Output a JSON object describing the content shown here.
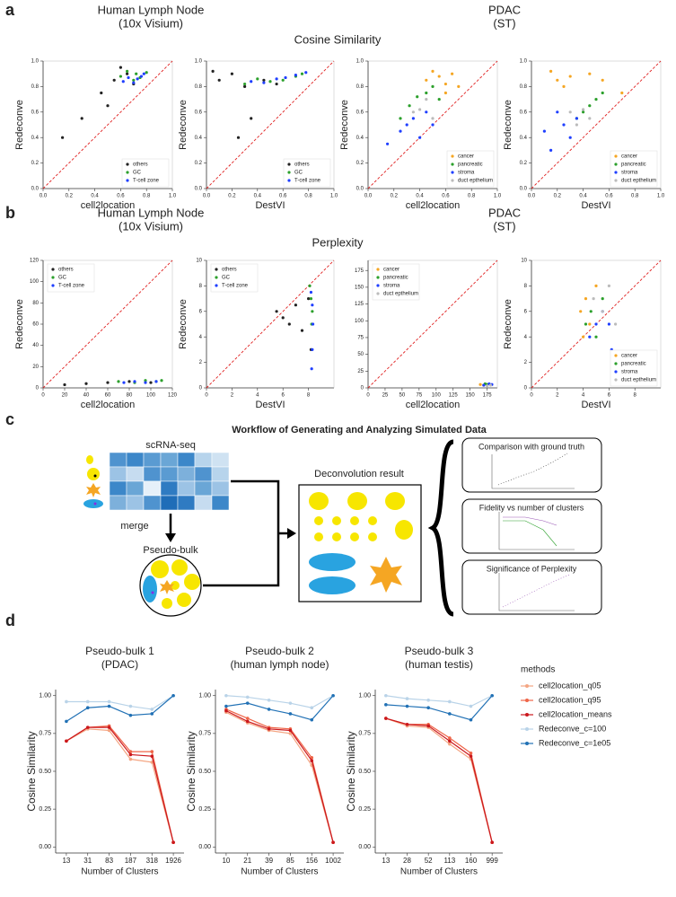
{
  "panel_labels": [
    "a",
    "b",
    "c",
    "d"
  ],
  "panel_a": {
    "headers": [
      {
        "title": "Human Lymph Node",
        "subtitle": "(10x Visium)"
      },
      {
        "title": "PDAC",
        "subtitle": "(ST)"
      }
    ],
    "metric": "Cosine Similarity"
  },
  "panel_b": {
    "headers": [
      {
        "title": "Human Lymph Node",
        "subtitle": "(10x Visium)"
      },
      {
        "title": "PDAC",
        "subtitle": "(ST)"
      }
    ],
    "metric": "Perplexity"
  },
  "diagram": {
    "title": "Workflow of Generating and Analyzing Simulated Data",
    "nodes": [
      {
        "label": "scRNA-seq"
      },
      {
        "label": "merge"
      },
      {
        "label": "Pseudo-bulk"
      },
      {
        "label": "Deconvolution result"
      },
      {
        "label": "Comparison with ground truth"
      },
      {
        "label": "Fidelity vs number of clusters"
      },
      {
        "label": "Significance of Perplexity"
      }
    ]
  },
  "chart_data": [
    {
      "type": "scatter",
      "xlabel": "cell2location",
      "ylabel": "Redeconve",
      "xlim": [
        0,
        1
      ],
      "ylim": [
        0,
        1
      ],
      "xticks": [
        {
          "value": 0,
          "label": "0.0"
        },
        0.2,
        0.4,
        0.6,
        0.8,
        {
          "value": 1,
          "label": "1.0"
        }
      ],
      "yticks": [
        {
          "value": 0,
          "label": "0.0"
        },
        0.2,
        0.4,
        0.6,
        0.8,
        {
          "value": 1,
          "label": "1.0"
        }
      ],
      "legend": "lower right",
      "series": [
        {
          "name": "others",
          "color": "#222222",
          "x": [
            0.15,
            0.3,
            0.45,
            0.55,
            0.6,
            0.65,
            0.7,
            0.5
          ],
          "values": [
            0.4,
            0.55,
            0.75,
            0.85,
            0.95,
            0.9,
            0.82,
            0.65
          ]
        },
        {
          "name": "GC",
          "color": "#2ca02c",
          "x": [
            0.6,
            0.65,
            0.7,
            0.72,
            0.75,
            0.8
          ],
          "values": [
            0.88,
            0.92,
            0.85,
            0.9,
            0.87,
            0.91
          ]
        },
        {
          "name": "T-cell zone",
          "color": "#1f3fff",
          "x": [
            0.62,
            0.66,
            0.7,
            0.73,
            0.76,
            0.78
          ],
          "values": [
            0.84,
            0.87,
            0.83,
            0.86,
            0.88,
            0.9
          ]
        }
      ]
    },
    {
      "type": "scatter",
      "xlabel": "DestVI",
      "ylabel": "Redeconve",
      "xlim": [
        0,
        1
      ],
      "ylim": [
        0,
        1
      ],
      "xticks": [
        {
          "value": 0,
          "label": "0.0"
        },
        0.2,
        0.4,
        0.6,
        0.8,
        {
          "value": 1,
          "label": "1.0"
        }
      ],
      "yticks": [
        {
          "value": 0,
          "label": "0.0"
        },
        0.2,
        0.4,
        0.6,
        0.8,
        {
          "value": 1,
          "label": "1.0"
        }
      ],
      "legend": "lower right",
      "series": [
        {
          "name": "others",
          "color": "#222222",
          "x": [
            0.05,
            0.1,
            0.2,
            0.3,
            0.35,
            0.45,
            0.55,
            0.25
          ],
          "values": [
            0.92,
            0.85,
            0.9,
            0.8,
            0.55,
            0.85,
            0.82,
            0.4
          ]
        },
        {
          "name": "GC",
          "color": "#2ca02c",
          "x": [
            0.3,
            0.4,
            0.5,
            0.6,
            0.7,
            0.75
          ],
          "values": [
            0.82,
            0.86,
            0.84,
            0.85,
            0.88,
            0.9
          ]
        },
        {
          "name": "T-cell zone",
          "color": "#1f3fff",
          "x": [
            0.35,
            0.45,
            0.55,
            0.62,
            0.7,
            0.78
          ],
          "values": [
            0.84,
            0.83,
            0.86,
            0.87,
            0.89,
            0.91
          ]
        }
      ]
    },
    {
      "type": "scatter",
      "xlabel": "cell2location",
      "ylabel": "Redeconve",
      "xlim": [
        0,
        1
      ],
      "ylim": [
        0,
        1
      ],
      "xticks": [
        {
          "value": 0,
          "label": "0.0"
        },
        0.2,
        0.4,
        0.6,
        0.8,
        {
          "value": 1,
          "label": "1.0"
        }
      ],
      "yticks": [
        {
          "value": 0,
          "label": "0.0"
        },
        0.2,
        0.4,
        0.6,
        0.8,
        {
          "value": 1,
          "label": "1.0"
        }
      ],
      "legend": "lower right",
      "series": [
        {
          "name": "cancer",
          "color": "#f5a623",
          "x": [
            0.45,
            0.5,
            0.55,
            0.6,
            0.65,
            0.7,
            0.6
          ],
          "values": [
            0.85,
            0.92,
            0.88,
            0.82,
            0.9,
            0.8,
            0.75
          ]
        },
        {
          "name": "pancreatic",
          "color": "#2ca02c",
          "x": [
            0.25,
            0.32,
            0.38,
            0.45,
            0.5,
            0.55
          ],
          "values": [
            0.55,
            0.65,
            0.72,
            0.75,
            0.8,
            0.7
          ]
        },
        {
          "name": "stroma",
          "color": "#1f3fff",
          "x": [
            0.15,
            0.25,
            0.3,
            0.35,
            0.4,
            0.45,
            0.5
          ],
          "values": [
            0.35,
            0.45,
            0.5,
            0.55,
            0.4,
            0.6,
            0.5
          ]
        },
        {
          "name": "duct epthelium",
          "color": "#bbbbbb",
          "x": [
            0.35,
            0.4,
            0.45,
            0.5
          ],
          "values": [
            0.6,
            0.62,
            0.7,
            0.55
          ]
        }
      ]
    },
    {
      "type": "scatter",
      "xlabel": "DestVI",
      "ylabel": "Redeconve",
      "xlim": [
        0,
        1
      ],
      "ylim": [
        0,
        1
      ],
      "xticks": [
        {
          "value": 0,
          "label": "0.0"
        },
        0.2,
        0.4,
        0.6,
        0.8,
        {
          "value": 1,
          "label": "1.0"
        }
      ],
      "yticks": [
        {
          "value": 0,
          "label": "0.0"
        },
        0.2,
        0.4,
        0.6,
        0.8,
        {
          "value": 1,
          "label": "1.0"
        }
      ],
      "legend": "lower right",
      "series": [
        {
          "name": "cancer",
          "color": "#f5a623",
          "x": [
            0.15,
            0.2,
            0.25,
            0.3,
            0.45,
            0.55,
            0.7
          ],
          "values": [
            0.92,
            0.85,
            0.8,
            0.88,
            0.9,
            0.85,
            0.75
          ]
        },
        {
          "name": "pancreatic",
          "color": "#2ca02c",
          "x": [
            0.35,
            0.4,
            0.45,
            0.5,
            0.55
          ],
          "values": [
            0.55,
            0.6,
            0.65,
            0.7,
            0.75
          ]
        },
        {
          "name": "stroma",
          "color": "#1f3fff",
          "x": [
            0.1,
            0.15,
            0.2,
            0.25,
            0.3,
            0.35
          ],
          "values": [
            0.45,
            0.3,
            0.6,
            0.5,
            0.4,
            0.55
          ]
        },
        {
          "name": "duct epthelium",
          "color": "#bbbbbb",
          "x": [
            0.3,
            0.35,
            0.4,
            0.45
          ],
          "values": [
            0.6,
            0.5,
            0.62,
            0.55
          ]
        }
      ]
    },
    {
      "type": "scatter",
      "xlabel": "cell2location",
      "ylabel": "Redeconve",
      "xlim": [
        0,
        120
      ],
      "ylim": [
        0,
        120
      ],
      "xticks": [
        0,
        20,
        40,
        60,
        80,
        100,
        120
      ],
      "yticks": [
        0,
        20,
        40,
        60,
        80,
        100,
        120
      ],
      "legend": "upper left",
      "series": [
        {
          "name": "others",
          "color": "#222222",
          "x": [
            20,
            40,
            60,
            80,
            100
          ],
          "values": [
            3,
            4,
            5,
            6,
            5
          ]
        },
        {
          "name": "GC",
          "color": "#2ca02c",
          "x": [
            70,
            85,
            95,
            105,
            110
          ],
          "values": [
            6,
            5,
            7,
            6,
            7
          ]
        },
        {
          "name": "T-cell zone",
          "color": "#1f3fff",
          "x": [
            75,
            85,
            95,
            105
          ],
          "values": [
            5,
            6,
            5,
            6
          ]
        }
      ]
    },
    {
      "type": "scatter",
      "xlabel": "DestVI",
      "ylabel": "Redeconve",
      "xlim": [
        0,
        10
      ],
      "ylim": [
        0,
        10
      ],
      "xticks": [
        0,
        2,
        4,
        6,
        8
      ],
      "yticks": [
        0,
        2,
        4,
        6,
        8,
        10
      ],
      "legend": "upper left",
      "series": [
        {
          "name": "others",
          "color": "#222222",
          "x": [
            5.5,
            6,
            6.5,
            7,
            7.5,
            8,
            8.2
          ],
          "values": [
            6,
            5.5,
            5,
            6.5,
            4.5,
            7,
            3
          ]
        },
        {
          "name": "GC",
          "color": "#2ca02c",
          "x": [
            8.1,
            8.2,
            8.3,
            8.25
          ],
          "values": [
            8,
            7,
            6,
            5
          ]
        },
        {
          "name": "T-cell zone",
          "color": "#1f3fff",
          "x": [
            8.2,
            8.3,
            8.35,
            8.3,
            8.25
          ],
          "values": [
            7.5,
            6.5,
            5,
            3,
            1.5
          ]
        }
      ]
    },
    {
      "type": "scatter",
      "xlabel": "cell2location",
      "xlim": [
        0,
        190
      ],
      "ylim": [
        0,
        190
      ],
      "xticks": [
        0,
        25,
        50,
        75,
        100,
        125,
        150,
        175
      ],
      "yticks": [
        0,
        25,
        50,
        75,
        100,
        125,
        150,
        175
      ],
      "legend": "upper left",
      "series": [
        {
          "name": "cancer",
          "color": "#f5a623",
          "x": [
            165,
            170
          ],
          "values": [
            5,
            4
          ]
        },
        {
          "name": "pancreatic",
          "color": "#2ca02c",
          "x": [
            172,
            175
          ],
          "values": [
            6,
            5
          ]
        },
        {
          "name": "stroma",
          "color": "#1f3fff",
          "x": [
            170,
            178,
            182
          ],
          "values": [
            4,
            6,
            5
          ]
        },
        {
          "name": "duct epthelium",
          "color": "#bbbbbb",
          "x": [
            175,
            180
          ],
          "values": [
            3,
            4
          ]
        }
      ]
    },
    {
      "type": "scatter",
      "xlabel": "DestVI",
      "ylabel": "Redeconve",
      "xlim": [
        0,
        10
      ],
      "ylim": [
        0,
        10
      ],
      "xticks": [
        0,
        2,
        4,
        6,
        8
      ],
      "yticks": [
        0,
        2,
        4,
        6,
        8,
        10
      ],
      "legend": "lower right",
      "series": [
        {
          "name": "cancer",
          "color": "#f5a623",
          "x": [
            3.8,
            4,
            4.2,
            4.5,
            5
          ],
          "values": [
            6,
            4,
            7,
            5,
            8
          ]
        },
        {
          "name": "pancreatic",
          "color": "#2ca02c",
          "x": [
            4.2,
            4.6,
            5,
            5.5
          ],
          "values": [
            5,
            6,
            4,
            7
          ]
        },
        {
          "name": "stroma",
          "color": "#1f3fff",
          "x": [
            4.5,
            5,
            5.5,
            6,
            6.2
          ],
          "values": [
            4,
            5,
            6,
            5,
            3
          ]
        },
        {
          "name": "duct epthelium",
          "color": "#bbbbbb",
          "x": [
            4.8,
            5.5,
            6,
            6.5
          ],
          "values": [
            7,
            6,
            8,
            5
          ]
        }
      ]
    },
    {
      "type": "line",
      "title": "Pseudo-bulk 1",
      "subtitle": "(PDAC)",
      "xlabel": "Number of Clusters",
      "ylabel": "Cosine Similarity",
      "categories": [
        "13",
        "31",
        "83",
        "187",
        "318",
        "1926"
      ],
      "ylim": [
        -0.04,
        1.04
      ],
      "yticks": [
        {
          "value": 0,
          "label": "0.00"
        },
        0.25,
        {
          "value": 0.5,
          "label": "0.50"
        },
        0.75,
        {
          "value": 1,
          "label": "1.00"
        }
      ],
      "series": [
        {
          "color": "#f4a582",
          "values": [
            0.7,
            0.78,
            0.77,
            0.58,
            0.56,
            0.03
          ]
        },
        {
          "color": "#ef6548",
          "values": [
            0.7,
            0.79,
            0.8,
            0.63,
            0.63,
            0.03
          ]
        },
        {
          "color": "#cb181d",
          "values": [
            0.7,
            0.79,
            0.79,
            0.61,
            0.6,
            0.03
          ]
        },
        {
          "color": "#b9d3e8",
          "values": [
            0.96,
            0.96,
            0.96,
            0.93,
            0.91,
            1.0
          ]
        },
        {
          "color": "#2171b5",
          "values": [
            0.83,
            0.92,
            0.93,
            0.87,
            0.88,
            1.0
          ]
        }
      ]
    },
    {
      "type": "line",
      "title": "Pseudo-bulk 2",
      "subtitle": "(human lymph node)",
      "xlabel": "Number of Clusters",
      "ylabel": "Cosine Similarity",
      "categories": [
        "10",
        "21",
        "39",
        "85",
        "156",
        "1002"
      ],
      "ylim": [
        -0.04,
        1.04
      ],
      "yticks": [
        {
          "value": 0,
          "label": "0.00"
        },
        0.25,
        {
          "value": 0.5,
          "label": "0.50"
        },
        0.75,
        {
          "value": 1,
          "label": "1.00"
        }
      ],
      "series": [
        {
          "color": "#f4a582",
          "values": [
            0.89,
            0.82,
            0.77,
            0.75,
            0.54,
            0.03
          ]
        },
        {
          "color": "#ef6548",
          "values": [
            0.91,
            0.85,
            0.79,
            0.78,
            0.59,
            0.03
          ]
        },
        {
          "color": "#cb181d",
          "values": [
            0.9,
            0.83,
            0.78,
            0.77,
            0.57,
            0.03
          ]
        },
        {
          "color": "#b9d3e8",
          "values": [
            1.0,
            0.99,
            0.97,
            0.95,
            0.92,
            1.0
          ]
        },
        {
          "color": "#2171b5",
          "values": [
            0.93,
            0.95,
            0.91,
            0.88,
            0.84,
            1.0
          ]
        }
      ]
    },
    {
      "type": "line",
      "title": "Pseudo-bulk 3",
      "subtitle": "(human testis)",
      "xlabel": "Number of Clusters",
      "ylabel": "Cosine Similarity",
      "categories": [
        "13",
        "28",
        "52",
        "113",
        "160",
        "999"
      ],
      "ylim": [
        -0.04,
        1.04
      ],
      "yticks": [
        {
          "value": 0,
          "label": "0.00"
        },
        0.25,
        {
          "value": 0.5,
          "label": "0.50"
        },
        0.75,
        {
          "value": 1,
          "label": "1.00"
        }
      ],
      "legend": "right",
      "legend_title": "methods",
      "series": [
        {
          "name": "cell2location_q05",
          "color": "#f4a582",
          "values": [
            0.85,
            0.8,
            0.79,
            0.68,
            0.58,
            0.03
          ]
        },
        {
          "name": "cell2location_q95",
          "color": "#ef6548",
          "values": [
            0.85,
            0.81,
            0.81,
            0.72,
            0.62,
            0.03
          ]
        },
        {
          "name": "cell2location_means",
          "color": "#cb181d",
          "values": [
            0.85,
            0.81,
            0.8,
            0.7,
            0.6,
            0.03
          ]
        },
        {
          "name": "Redeconve_c=100",
          "color": "#b9d3e8",
          "values": [
            1.0,
            0.98,
            0.97,
            0.96,
            0.93,
            1.0
          ]
        },
        {
          "name": "Redeconve_c=1e05",
          "color": "#2171b5",
          "values": [
            0.94,
            0.93,
            0.92,
            0.88,
            0.84,
            1.0
          ]
        }
      ]
    }
  ]
}
